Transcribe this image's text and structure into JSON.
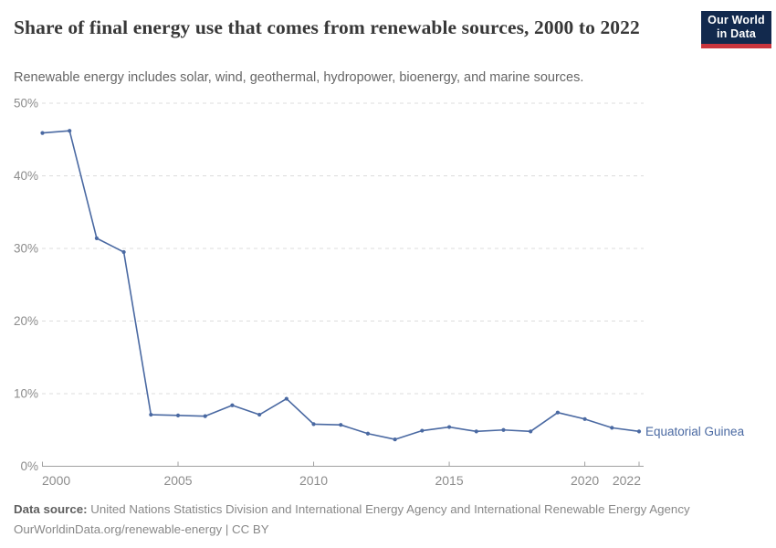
{
  "header": {
    "title": "Share of final energy use that comes from renewable sources, 2000 to 2022",
    "subtitle": "Renewable energy includes solar, wind, geothermal, hydropower, bioenergy, and marine sources.",
    "logo": {
      "line1": "Our World",
      "line2": "in Data"
    }
  },
  "chart_data": {
    "type": "line",
    "title": "Share of final energy use that comes from renewable sources, 2000 to 2022",
    "xlabel": "",
    "ylabel": "",
    "x": [
      2000,
      2001,
      2002,
      2003,
      2004,
      2005,
      2006,
      2007,
      2008,
      2009,
      2010,
      2011,
      2012,
      2013,
      2014,
      2015,
      2016,
      2017,
      2018,
      2019,
      2020,
      2021,
      2022
    ],
    "series": [
      {
        "name": "Equatorial Guinea",
        "color": "#4a69a2",
        "values": [
          45.9,
          46.2,
          31.4,
          29.5,
          7.1,
          7.0,
          6.9,
          8.4,
          7.1,
          9.3,
          5.8,
          5.7,
          4.5,
          3.7,
          4.9,
          5.4,
          4.8,
          5.0,
          4.8,
          7.4,
          6.5,
          5.3,
          4.8
        ]
      }
    ],
    "x_ticks": [
      2000,
      2005,
      2010,
      2015,
      2020,
      2022
    ],
    "y_ticks": [
      0,
      10,
      20,
      30,
      40,
      50
    ],
    "y_tick_suffix": "%",
    "xlim": [
      2000,
      2022
    ],
    "ylim": [
      0,
      50
    ],
    "grid": true,
    "legend_position": "end-of-line-label"
  },
  "footer": {
    "source_label": "Data source:",
    "source_text": " United Nations Statistics Division and International Energy Agency and International Renewable Energy Agency",
    "link_line": "OurWorldinData.org/renewable-energy | CC BY"
  },
  "colors": {
    "accent_line": "#4a69a2",
    "logo_navy": "#12294d",
    "logo_red": "#c9353d",
    "grid": "#dcdcdc",
    "axis": "#a0a0a0",
    "tick_text": "#8c8c8c",
    "title_text": "#383838",
    "subtitle_text": "#666666",
    "footer_text": "#888888"
  }
}
